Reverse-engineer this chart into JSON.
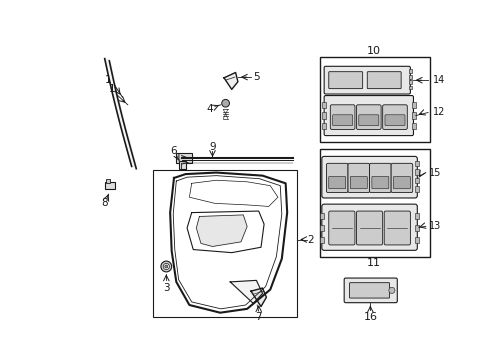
{
  "bg_color": "#ffffff",
  "line_color": "#1a1a1a",
  "fig_width": 4.89,
  "fig_height": 3.6,
  "dpi": 100,
  "label_fontsize": 7.5
}
